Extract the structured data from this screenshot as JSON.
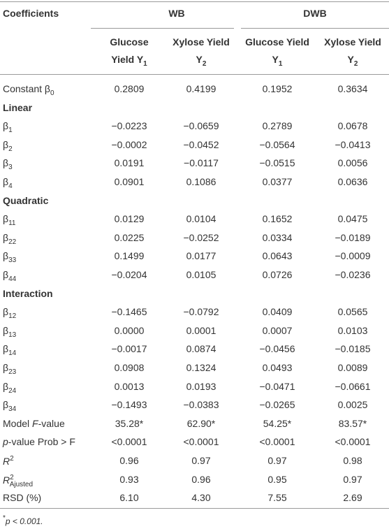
{
  "table": {
    "header": {
      "coefficients": "Coefficients",
      "groups": [
        "WB",
        "DWB"
      ],
      "columns": [
        {
          "lines": [
            [
              {
                "text": "Glucose"
              }
            ],
            [
              {
                "text": "Yield Y"
              },
              {
                "text": "1",
                "style": "sub"
              }
            ]
          ]
        },
        {
          "lines": [
            [
              {
                "text": "Xylose Yield"
              }
            ],
            [
              {
                "text": "Y"
              },
              {
                "text": "2",
                "style": "sub"
              }
            ]
          ]
        },
        {
          "lines": [
            [
              {
                "text": "Glucose Yield"
              }
            ],
            [
              {
                "text": "Y"
              },
              {
                "text": "1",
                "style": "sub"
              }
            ]
          ]
        },
        {
          "lines": [
            [
              {
                "text": "Xylose Yield"
              }
            ],
            [
              {
                "text": "Y"
              },
              {
                "text": "2",
                "style": "sub"
              }
            ]
          ]
        }
      ]
    },
    "rows": [
      {
        "label": [
          {
            "text": "Constant β"
          },
          {
            "text": "0",
            "style": "sub"
          }
        ],
        "values": [
          "0.2809",
          "0.4199",
          "0.1952",
          "0.3634"
        ]
      },
      {
        "section": "Linear"
      },
      {
        "label": [
          {
            "text": "β"
          },
          {
            "text": "1",
            "style": "sub"
          }
        ],
        "values": [
          "−0.0223",
          "−0.0659",
          "0.2789",
          "0.0678"
        ]
      },
      {
        "label": [
          {
            "text": "β"
          },
          {
            "text": "2",
            "style": "sub"
          }
        ],
        "values": [
          "−0.0002",
          "−0.0452",
          "−0.0564",
          "−0.0413"
        ]
      },
      {
        "label": [
          {
            "text": "β"
          },
          {
            "text": "3",
            "style": "sub"
          }
        ],
        "values": [
          "0.0191",
          "−0.0117",
          "−0.0515",
          "0.0056"
        ]
      },
      {
        "label": [
          {
            "text": "β"
          },
          {
            "text": "4",
            "style": "sub"
          }
        ],
        "values": [
          "0.0901",
          "0.1086",
          "0.0377",
          "0.0636"
        ]
      },
      {
        "section": "Quadratic"
      },
      {
        "label": [
          {
            "text": "β"
          },
          {
            "text": "11",
            "style": "sub"
          }
        ],
        "values": [
          "0.0129",
          "0.0104",
          "0.1652",
          "0.0475"
        ]
      },
      {
        "label": [
          {
            "text": "β"
          },
          {
            "text": "22",
            "style": "sub"
          }
        ],
        "values": [
          "0.0225",
          "−0.0252",
          "0.0334",
          "−0.0189"
        ]
      },
      {
        "label": [
          {
            "text": "β"
          },
          {
            "text": "33",
            "style": "sub"
          }
        ],
        "values": [
          "0.1499",
          "0.0177",
          "0.0643",
          "−0.0009"
        ]
      },
      {
        "label": [
          {
            "text": "β"
          },
          {
            "text": "44",
            "style": "sub"
          }
        ],
        "values": [
          "−0.0204",
          "0.0105",
          "0.0726",
          "−0.0236"
        ]
      },
      {
        "section": "Interaction"
      },
      {
        "label": [
          {
            "text": "β"
          },
          {
            "text": "12",
            "style": "sub"
          }
        ],
        "values": [
          "−0.1465",
          "−0.0792",
          "0.0409",
          "0.0565"
        ]
      },
      {
        "label": [
          {
            "text": "β"
          },
          {
            "text": "13",
            "style": "sub"
          }
        ],
        "values": [
          "0.0000",
          "0.0001",
          "0.0007",
          "0.0103"
        ]
      },
      {
        "label": [
          {
            "text": "β"
          },
          {
            "text": "14",
            "style": "sub"
          }
        ],
        "values": [
          "−0.0017",
          "0.0874",
          "−0.0456",
          "−0.0185"
        ]
      },
      {
        "label": [
          {
            "text": "β"
          },
          {
            "text": "23",
            "style": "sub"
          }
        ],
        "values": [
          "0.0908",
          "0.1324",
          "0.0493",
          "0.0089"
        ]
      },
      {
        "label": [
          {
            "text": "β"
          },
          {
            "text": "24",
            "style": "sub"
          }
        ],
        "values": [
          "0.0013",
          "0.0193",
          "−0.0471",
          "−0.0661"
        ]
      },
      {
        "label": [
          {
            "text": "β"
          },
          {
            "text": "34",
            "style": "sub"
          }
        ],
        "values": [
          "−0.1493",
          "−0.0383",
          "−0.0265",
          "0.0025"
        ]
      },
      {
        "label": [
          {
            "text": "Model "
          },
          {
            "text": "F",
            "style": "italic"
          },
          {
            "text": "-value"
          }
        ],
        "values": [
          "35.28*",
          "62.90*",
          "54.25*",
          "83.57*"
        ]
      },
      {
        "label": [
          {
            "text": "p",
            "style": "italic"
          },
          {
            "text": "-value Prob > F"
          }
        ],
        "values": [
          "<0.0001",
          "<0.0001",
          "<0.0001",
          "<0.0001"
        ]
      },
      {
        "label": [
          {
            "text": "R",
            "style": "italic"
          },
          {
            "text": "2",
            "style": "sup"
          }
        ],
        "values": [
          "0.96",
          "0.97",
          "0.97",
          "0.98"
        ]
      },
      {
        "label": [
          {
            "text": "R",
            "style": "italic"
          },
          {
            "text": "2",
            "style": "sup"
          },
          {
            "text": "Ajusted",
            "style": "sub"
          }
        ],
        "values": [
          "0.93",
          "0.96",
          "0.95",
          "0.97"
        ]
      },
      {
        "label": [
          {
            "text": "RSD (%)"
          }
        ],
        "values": [
          "6.10",
          "4.30",
          "7.55",
          "2.69"
        ]
      }
    ],
    "footnote": [
      {
        "text": "*",
        "style": "sup"
      },
      {
        "text": "p < 0.001.",
        "style": "italic"
      }
    ]
  }
}
